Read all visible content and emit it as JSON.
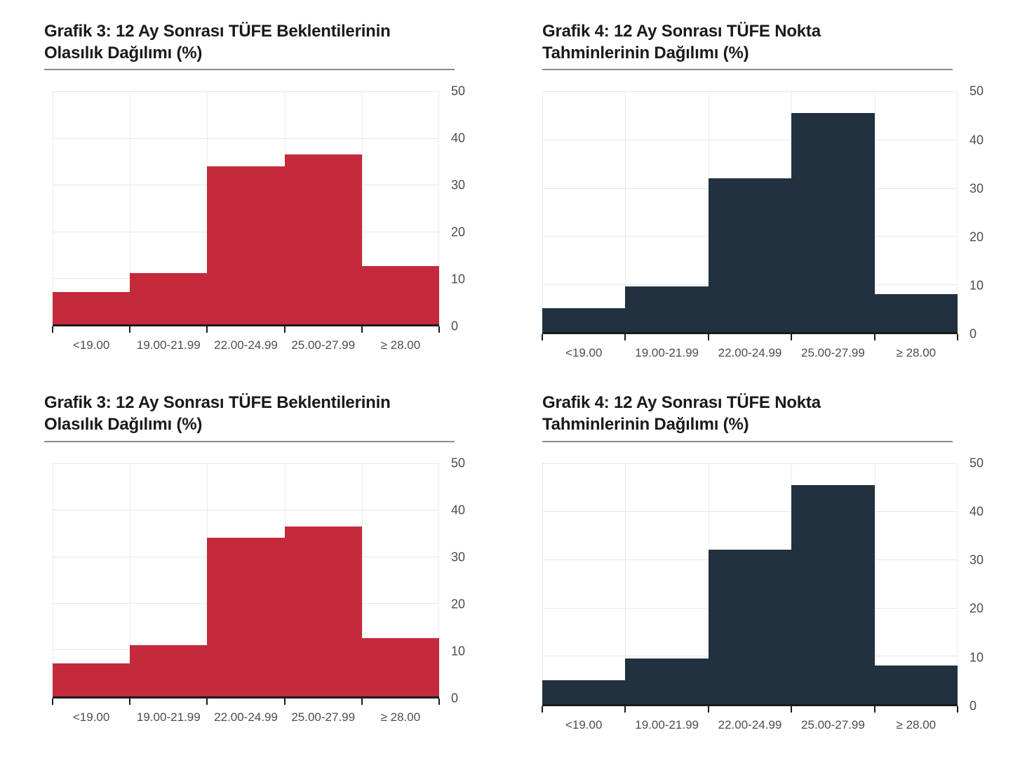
{
  "page": {
    "background": "#ffffff"
  },
  "colors": {
    "grafik3_red": "#C42A3C",
    "grafik4_navy": "#213140",
    "axis": "#1A1A1A",
    "gridline": "#E7E7E7",
    "tick_label": "#4D4D4D",
    "title_text": "#1A1A1A",
    "title_underline": "#8C8C8C"
  },
  "chart_data": [
    {
      "type": "bar",
      "title": "Grafik 3: 12 Ay Sonrası TÜFE Beklentilerinin Olasılık Dağılımı (%)",
      "title_lines": [
        "Grafik 3: 12 Ay Sonrası TÜFE Beklentilerinin",
        "Olasılık Dağılımı (%)"
      ],
      "categories": [
        "<19.00",
        "19.00-21.99",
        "22.00-24.99",
        "25.00-27.99",
        "≥ 28.00"
      ],
      "values": [
        7,
        11,
        34,
        36.5,
        12.5
      ],
      "bar_color": "#C42A3C",
      "xlabel": "",
      "ylabel": "",
      "ylim": [
        0,
        50
      ],
      "yticks": [
        0,
        10,
        20,
        30,
        40,
        50
      ],
      "ytick_side": "right",
      "grid": true,
      "legend": "none"
    },
    {
      "type": "bar",
      "title": "Grafik 4: 12 Ay Sonrası TÜFE Nokta Tahminlerinin Dağılımı (%)",
      "title_lines": [
        "Grafik 4: 12 Ay Sonrası TÜFE Nokta",
        "Tahminlerinin Dağılımı (%)"
      ],
      "categories": [
        "<19.00",
        "19.00-21.99",
        "22.00-24.99",
        "25.00-27.99",
        "≥ 28.00"
      ],
      "values": [
        5,
        9.5,
        32,
        45.5,
        8
      ],
      "bar_color": "#213140",
      "xlabel": "",
      "ylabel": "",
      "ylim": [
        0,
        50
      ],
      "yticks": [
        0,
        10,
        20,
        30,
        40,
        50
      ],
      "ytick_side": "right",
      "grid": true,
      "legend": "none"
    },
    {
      "type": "bar",
      "title": "Grafik 3: 12 Ay Sonrası TÜFE Beklentilerinin Olasılık Dağılımı (%)",
      "title_lines": [
        "Grafik 3: 12 Ay Sonrası TÜFE Beklentilerinin",
        "Olasılık Dağılımı (%)"
      ],
      "categories": [
        "<19.00",
        "19.00-21.99",
        "22.00-24.99",
        "25.00-27.99",
        "≥ 28.00"
      ],
      "values": [
        7,
        11,
        34,
        36.5,
        12.5
      ],
      "bar_color": "#C42A3C",
      "xlabel": "",
      "ylabel": "",
      "ylim": [
        0,
        50
      ],
      "yticks": [
        0,
        10,
        20,
        30,
        40,
        50
      ],
      "ytick_side": "right",
      "grid": true,
      "legend": "none"
    },
    {
      "type": "bar",
      "title": "Grafik 4: 12 Ay Sonrası TÜFE Nokta Tahminlerinin Dağılımı (%)",
      "title_lines": [
        "Grafik 4: 12 Ay Sonrası TÜFE Nokta",
        "Tahminlerinin Dağılımı (%)"
      ],
      "categories": [
        "<19.00",
        "19.00-21.99",
        "22.00-24.99",
        "25.00-27.99",
        "≥ 28.00"
      ],
      "values": [
        5,
        9.5,
        32,
        45.5,
        8
      ],
      "bar_color": "#213140",
      "xlabel": "",
      "ylabel": "",
      "ylim": [
        0,
        50
      ],
      "yticks": [
        0,
        10,
        20,
        30,
        40,
        50
      ],
      "ytick_side": "right",
      "grid": true,
      "legend": "none"
    }
  ]
}
